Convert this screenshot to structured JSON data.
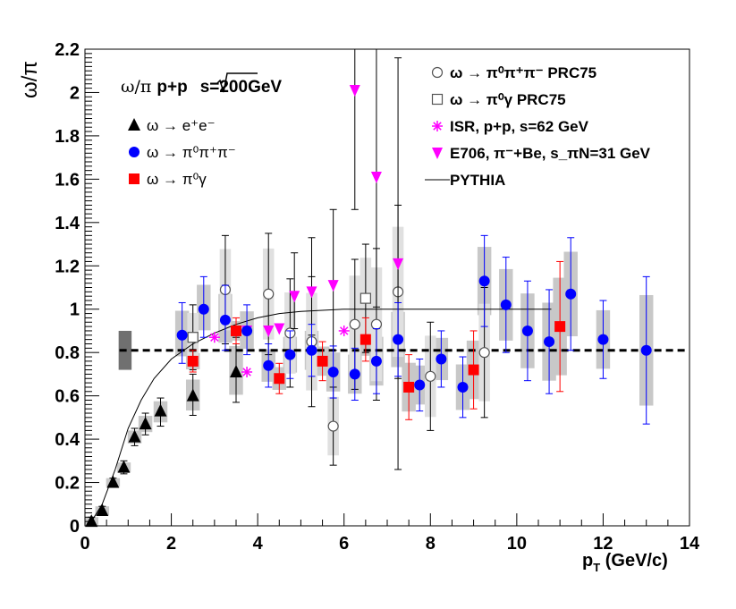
{
  "chart_data": {
    "type": "scatter",
    "ylabel": "ω/π",
    "xlabel": "p_T (GeV/c)",
    "xlim": [
      0,
      14
    ],
    "ylim": [
      0,
      2.2
    ],
    "x_ticks": [
      "0",
      "2",
      "4",
      "6",
      "8",
      "10",
      "12",
      "14"
    ],
    "y_ticks": [
      "0",
      "0.2",
      "0.4",
      "0.6",
      "0.8",
      "1",
      "1.2",
      "1.4",
      "1.6",
      "1.8",
      "2",
      "2.2"
    ],
    "grid": false,
    "fit_line": {
      "y": 0.81,
      "style": "dashed"
    },
    "title_parts": {
      "a": "ω/π",
      "b": "p+p",
      "c": "s=200GeV"
    },
    "legend_left": [
      {
        "text": "ω → e⁺e⁻",
        "marker": "triangle-up",
        "color": "#000000"
      },
      {
        "text": "ω → π⁰π⁺π⁻",
        "marker": "circle",
        "color": "#0000ff"
      },
      {
        "text": "ω → π⁰γ",
        "marker": "square",
        "color": "#ff0000"
      }
    ],
    "legend_right": [
      {
        "text": "ω → π⁰π⁺π⁻  PRC75",
        "marker": "open-circle",
        "color": "#555555"
      },
      {
        "text": "ω → π⁰γ  PRC75",
        "marker": "open-square",
        "color": "#555555"
      },
      {
        "text": "ISR, p+p, s=62 GeV",
        "marker": "star",
        "color": "#ff00ff"
      },
      {
        "text": "E706, π⁻+Be, s_πN=31 GeV",
        "marker": "triangle-down",
        "color": "#ff00ff"
      },
      {
        "text": "PYTHIA",
        "marker": "line",
        "color": "#000000"
      }
    ],
    "series": [
      {
        "name": "ω → e⁺e⁻",
        "marker": "triangle-up",
        "color": "#000000",
        "points": [
          [
            0.15,
            0.02,
            0.02,
            0.01
          ],
          [
            0.4,
            0.07,
            0.02,
            0.01
          ],
          [
            0.65,
            0.2,
            0.02,
            0.02
          ],
          [
            0.9,
            0.27,
            0.03,
            0.03
          ],
          [
            1.15,
            0.41,
            0.04,
            0.04
          ],
          [
            1.4,
            0.47,
            0.05,
            0.05
          ],
          [
            1.75,
            0.53,
            0.06,
            0.07
          ],
          [
            2.5,
            0.6,
            0.1,
            0.09
          ],
          [
            3.5,
            0.71,
            0.16,
            0.14
          ]
        ]
      },
      {
        "name": "ω → π⁰π⁺π⁻",
        "marker": "circle",
        "color": "#0000ff",
        "points": [
          [
            2.25,
            0.88,
            0.15,
            0.13
          ],
          [
            2.75,
            1.0,
            0.15,
            0.13
          ],
          [
            3.25,
            0.95,
            0.16,
            0.14
          ],
          [
            3.75,
            0.9,
            0.12,
            0.11
          ],
          [
            4.25,
            0.74,
            0.1,
            0.1
          ],
          [
            4.75,
            0.79,
            0.11,
            0.11
          ],
          [
            5.25,
            0.81,
            0.12,
            0.12
          ],
          [
            5.75,
            0.71,
            0.12,
            0.12
          ],
          [
            6.25,
            0.7,
            0.12,
            0.12
          ],
          [
            6.75,
            0.76,
            0.15,
            0.15
          ],
          [
            7.25,
            0.86,
            0.17,
            0.17
          ],
          [
            7.75,
            0.65,
            0.12,
            0.12
          ],
          [
            8.25,
            0.77,
            0.13,
            0.13
          ],
          [
            8.75,
            0.64,
            0.14,
            0.14
          ],
          [
            9.25,
            1.13,
            0.21,
            0.21
          ],
          [
            9.75,
            1.02,
            0.22,
            0.22
          ],
          [
            10.25,
            0.9,
            0.23,
            0.23
          ],
          [
            10.75,
            0.85,
            0.24,
            0.24
          ],
          [
            11.25,
            1.07,
            0.26,
            0.26
          ],
          [
            12.0,
            0.86,
            0.18,
            0.18
          ],
          [
            13.0,
            0.81,
            0.34,
            0.34
          ]
        ]
      },
      {
        "name": "ω → π⁰γ",
        "marker": "square",
        "color": "#ff0000",
        "points": [
          [
            2.5,
            0.76,
            0.05,
            0.05
          ],
          [
            3.5,
            0.9,
            0.06,
            0.06
          ],
          [
            4.5,
            0.68,
            0.07,
            0.07
          ],
          [
            5.5,
            0.76,
            0.09,
            0.09
          ],
          [
            6.5,
            0.86,
            0.1,
            0.1
          ],
          [
            7.5,
            0.64,
            0.15,
            0.15
          ],
          [
            9.0,
            0.72,
            0.18,
            0.18
          ],
          [
            11.0,
            0.92,
            0.3,
            0.3
          ]
        ]
      },
      {
        "name": "ω → π⁰π⁺π⁻  PRC75",
        "marker": "open-circle",
        "color": "#555555",
        "points": [
          [
            3.25,
            1.09,
            0.25,
            0.25
          ],
          [
            4.25,
            1.07,
            0.28,
            0.28
          ],
          [
            4.75,
            0.89,
            0.25,
            0.25
          ],
          [
            5.25,
            0.85,
            0.3,
            0.3
          ],
          [
            5.75,
            0.46,
            0.18,
            0.18
          ],
          [
            6.25,
            0.93,
            0.3,
            0.3
          ],
          [
            6.75,
            0.93,
            0.35,
            0.35
          ],
          [
            7.25,
            1.08,
            0.4,
            0.4
          ],
          [
            8.0,
            0.69,
            0.25,
            0.25
          ],
          [
            9.25,
            0.8,
            0.3,
            0.3
          ]
        ]
      },
      {
        "name": "ω → π⁰γ  PRC75",
        "marker": "open-square",
        "color": "#555555",
        "points": [
          [
            2.5,
            0.87,
            0.15,
            0.15
          ],
          [
            6.5,
            1.05,
            0.25,
            0.25
          ]
        ]
      },
      {
        "name": "ISR, p+p, s=62 GeV",
        "marker": "star",
        "color": "#ff00ff",
        "points": [
          [
            3.0,
            0.87,
            0,
            0
          ],
          [
            3.5,
            0.9,
            0,
            0
          ],
          [
            3.75,
            0.71,
            0,
            0
          ],
          [
            6.0,
            0.9,
            0,
            0
          ]
        ]
      },
      {
        "name": "E706, π⁻+Be, s_πN=31 GeV",
        "marker": "triangle-down",
        "color": "#ff00ff",
        "points": [
          [
            3.75,
            0.9,
            0,
            0
          ],
          [
            4.25,
            0.9,
            0,
            0
          ],
          [
            4.5,
            0.91,
            0,
            0
          ],
          [
            4.85,
            1.06,
            0.2,
            0.15
          ],
          [
            5.25,
            1.08,
            0.25,
            0.2
          ],
          [
            5.75,
            1.11,
            0.35,
            0.3
          ],
          [
            6.25,
            2.01,
            0.6,
            0.55
          ],
          [
            6.75,
            1.61,
            0.6,
            0.6
          ],
          [
            7.25,
            1.21,
            0.95,
            0.95
          ]
        ]
      }
    ],
    "pythia": [
      [
        0.15,
        0.02
      ],
      [
        0.4,
        0.1
      ],
      [
        0.7,
        0.26
      ],
      [
        1.0,
        0.45
      ],
      [
        1.3,
        0.58
      ],
      [
        1.6,
        0.68
      ],
      [
        2.0,
        0.77
      ],
      [
        2.5,
        0.84
      ],
      [
        3.0,
        0.89
      ],
      [
        3.5,
        0.93
      ],
      [
        4.0,
        0.96
      ],
      [
        4.5,
        0.98
      ],
      [
        5.0,
        0.99
      ],
      [
        6.0,
        1.0
      ],
      [
        8.0,
        1.0
      ],
      [
        10.8,
        1.0
      ]
    ],
    "colors": {
      "axis": "#000000",
      "sys_band_dark": "#c8c8c8",
      "sys_band_light": "#e0e0e0",
      "norm_box": "#707070"
    }
  }
}
